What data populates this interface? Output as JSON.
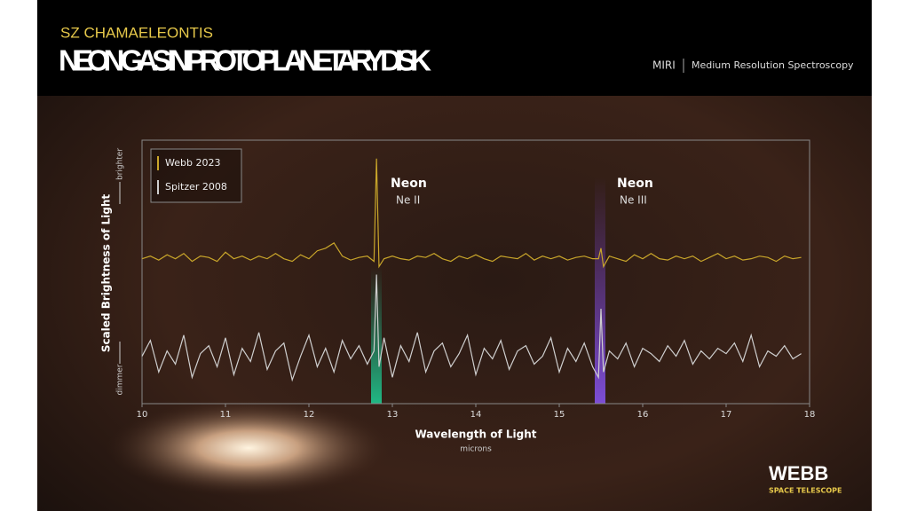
{
  "header": {
    "kicker": "SZ CHAMAELEONTIS",
    "title": "NEON GAS IN PROTOPLANETARY DISK",
    "instrument": "MIRI",
    "mode": "Medium Resolution Spectroscopy"
  },
  "brand": {
    "name": "WEBB",
    "sub": "SPACE TELESCOPE"
  },
  "chart_data": {
    "type": "line",
    "xlabel": "Wavelength of Light",
    "xunit": "microns",
    "ylabel": "Scaled Brightness of Light",
    "yhigh": "brighter",
    "ylow": "dimmer",
    "annotations": [
      {
        "title": "Neon",
        "label": "Ne II"
      },
      {
        "title": "Neon",
        "label": "Ne III"
      }
    ],
    "xlim": [
      10,
      18
    ],
    "xticks": [
      10,
      11,
      12,
      13,
      14,
      15,
      16,
      17,
      18
    ],
    "ylim": [
      0,
      100
    ],
    "x": [
      10.0,
      10.1,
      10.2,
      10.3,
      10.4,
      10.5,
      10.6,
      10.7,
      10.8,
      10.9,
      11.0,
      11.1,
      11.2,
      11.3,
      11.4,
      11.5,
      11.6,
      11.7,
      11.8,
      11.9,
      12.0,
      12.1,
      12.2,
      12.3,
      12.4,
      12.5,
      12.6,
      12.7,
      12.78,
      12.81,
      12.84,
      12.9,
      13.0,
      13.1,
      13.2,
      13.3,
      13.4,
      13.5,
      13.6,
      13.7,
      13.8,
      13.9,
      14.0,
      14.1,
      14.2,
      14.3,
      14.4,
      14.5,
      14.6,
      14.7,
      14.8,
      14.9,
      15.0,
      15.1,
      15.2,
      15.3,
      15.4,
      15.47,
      15.5,
      15.53,
      15.6,
      15.7,
      15.8,
      15.9,
      16.0,
      16.1,
      16.2,
      16.3,
      16.4,
      16.5,
      16.6,
      16.7,
      16.8,
      16.9,
      17.0,
      17.1,
      17.2,
      17.3,
      17.4,
      17.5,
      17.6,
      17.7,
      17.8,
      17.9
    ],
    "series": [
      {
        "name": "Webb 2023",
        "color": "#c9a62a",
        "values": [
          55,
          56,
          54.5,
          56.5,
          55,
          57,
          54,
          56,
          55.5,
          54,
          57.5,
          55,
          56,
          54.5,
          56,
          55,
          57,
          55,
          54,
          56.5,
          55,
          58,
          59,
          61,
          56,
          54.5,
          55.5,
          56,
          54,
          93,
          52,
          55,
          56,
          55,
          54.5,
          56,
          55.5,
          57,
          55,
          54,
          56,
          55,
          56.5,
          55,
          54,
          56,
          55.5,
          55,
          57,
          54.5,
          56,
          55,
          56,
          54.5,
          55.5,
          56,
          55,
          55,
          59,
          52,
          56,
          55,
          54,
          56.5,
          55,
          57,
          55,
          54.5,
          56,
          55,
          56,
          54,
          55.5,
          57,
          55,
          56,
          54.5,
          55,
          56,
          55.5,
          54,
          56,
          55,
          55.5
        ]
      },
      {
        "name": "Spitzer 2008",
        "color": "#cfcfcf",
        "values": [
          18,
          24,
          12,
          20,
          15,
          26,
          10,
          19,
          22,
          14,
          25,
          11,
          21,
          16,
          27,
          13,
          20,
          23,
          9,
          18,
          26,
          14,
          21,
          12,
          24,
          17,
          22,
          15,
          20,
          49,
          14,
          25,
          10,
          22,
          16,
          27,
          12,
          20,
          23,
          14,
          19,
          26,
          11,
          21,
          17,
          24,
          13,
          20,
          22,
          15,
          18,
          25,
          12,
          21,
          16,
          23,
          14,
          10,
          36,
          12,
          20,
          17,
          23,
          14,
          21,
          19,
          16,
          22,
          18,
          24,
          15,
          20,
          17,
          21,
          19,
          23,
          16,
          26,
          14,
          20,
          18,
          22,
          17,
          19
        ]
      }
    ]
  }
}
